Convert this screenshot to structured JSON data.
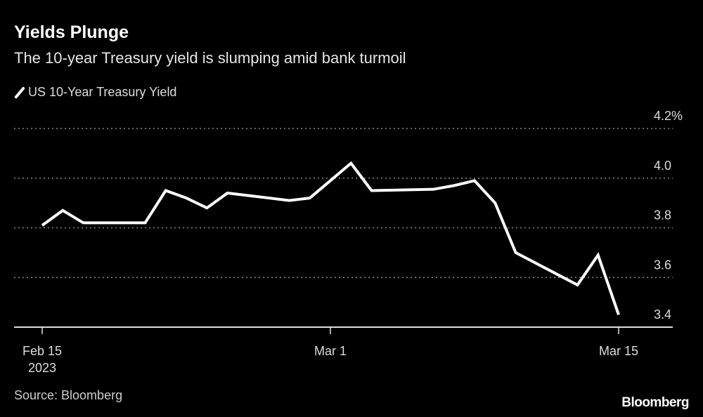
{
  "header": {
    "title": "Yields Plunge",
    "subtitle": "The 10-year Treasury yield is slumping amid bank turmoil"
  },
  "footer": {
    "source": "Source: Bloomberg",
    "logo": "Bloomberg"
  },
  "chart_data": {
    "type": "line",
    "title": "Yields Plunge",
    "subtitle": "The 10-year Treasury yield is slumping amid bank turmoil",
    "legend": {
      "position": "top-left",
      "entries": [
        "US 10-Year Treasury Yield"
      ]
    },
    "xlabel": "",
    "ylabel": "",
    "ylim": [
      3.4,
      4.2
    ],
    "yticks": [
      {
        "value": 4.2,
        "label": "4.2%"
      },
      {
        "value": 4.0,
        "label": "4.0"
      },
      {
        "value": 3.8,
        "label": "3.8"
      },
      {
        "value": 3.6,
        "label": "3.6"
      },
      {
        "value": 3.4,
        "label": "3.4"
      }
    ],
    "xticks": [
      {
        "day": 0,
        "label": "Feb 15",
        "sublabel": "2023"
      },
      {
        "day": 14,
        "label": "Mar 1",
        "sublabel": ""
      },
      {
        "day": 28,
        "label": "Mar 15",
        "sublabel": ""
      }
    ],
    "xlim_days": [
      0,
      28
    ],
    "grid": true,
    "line_color": "#ffffff",
    "series": [
      {
        "name": "US 10-Year Treasury Yield",
        "points": [
          {
            "date": "2023-02-15",
            "day": 0,
            "value": 3.81
          },
          {
            "date": "2023-02-16",
            "day": 1,
            "value": 3.87
          },
          {
            "date": "2023-02-17",
            "day": 2,
            "value": 3.82
          },
          {
            "date": "2023-02-20",
            "day": 5,
            "value": 3.82
          },
          {
            "date": "2023-02-21",
            "day": 6,
            "value": 3.95
          },
          {
            "date": "2023-02-22",
            "day": 7,
            "value": 3.92
          },
          {
            "date": "2023-02-23",
            "day": 8,
            "value": 3.88
          },
          {
            "date": "2023-02-24",
            "day": 9,
            "value": 3.94
          },
          {
            "date": "2023-02-27",
            "day": 12,
            "value": 3.91
          },
          {
            "date": "2023-02-28",
            "day": 13,
            "value": 3.92
          },
          {
            "date": "2023-03-01",
            "day": 14,
            "value": 3.99
          },
          {
            "date": "2023-03-02",
            "day": 15,
            "value": 4.06
          },
          {
            "date": "2023-03-03",
            "day": 16,
            "value": 3.95
          },
          {
            "date": "2023-03-06",
            "day": 19,
            "value": 3.955
          },
          {
            "date": "2023-03-07",
            "day": 20,
            "value": 3.97
          },
          {
            "date": "2023-03-08",
            "day": 21,
            "value": 3.99
          },
          {
            "date": "2023-03-09",
            "day": 22,
            "value": 3.9
          },
          {
            "date": "2023-03-10",
            "day": 23,
            "value": 3.7
          },
          {
            "date": "2023-03-13",
            "day": 26,
            "value": 3.57
          },
          {
            "date": "2023-03-14",
            "day": 27,
            "value": 3.69
          },
          {
            "date": "2023-03-15",
            "day": 28,
            "value": 3.45
          }
        ]
      }
    ]
  }
}
